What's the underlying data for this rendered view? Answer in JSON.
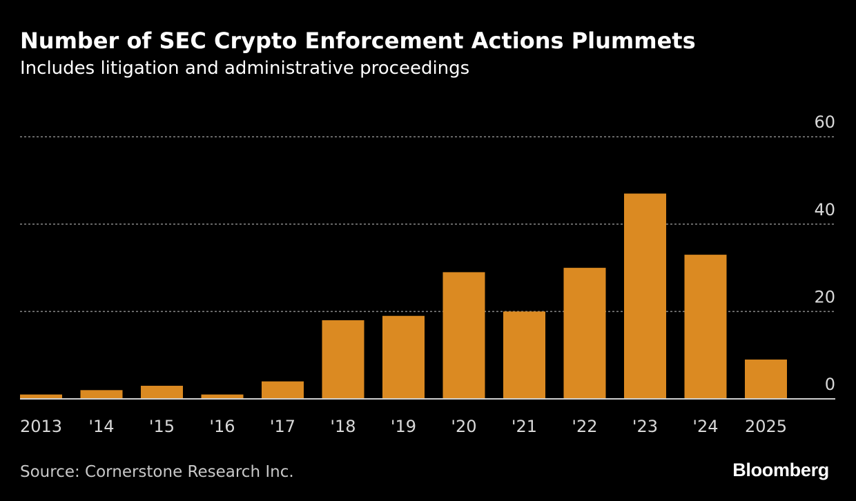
{
  "title": "Number of SEC Crypto Enforcement Actions Plummets",
  "subtitle": "Includes litigation and administrative proceedings",
  "source": "Source: Cornerstone Research Inc.",
  "brand": "Bloomberg",
  "colors": {
    "background": "#000000",
    "bar": "#db8a22",
    "gridline": "#8a8a8a",
    "axis_line": "#cfcfcf",
    "tick_text": "#d9d9d9"
  },
  "chart_data": {
    "type": "bar",
    "categories": [
      "2013",
      "'14",
      "'15",
      "'16",
      "'17",
      "'18",
      "'19",
      "'20",
      "'21",
      "'22",
      "'23",
      "'24",
      "2025"
    ],
    "values": [
      1,
      2,
      3,
      1,
      4,
      18,
      19,
      29,
      20,
      30,
      47,
      33,
      9
    ],
    "yticks": [
      0,
      20,
      40,
      60
    ],
    "ylim": [
      0,
      60
    ],
    "grid": true,
    "y_axis_side": "right",
    "xlabel": "",
    "ylabel": ""
  }
}
